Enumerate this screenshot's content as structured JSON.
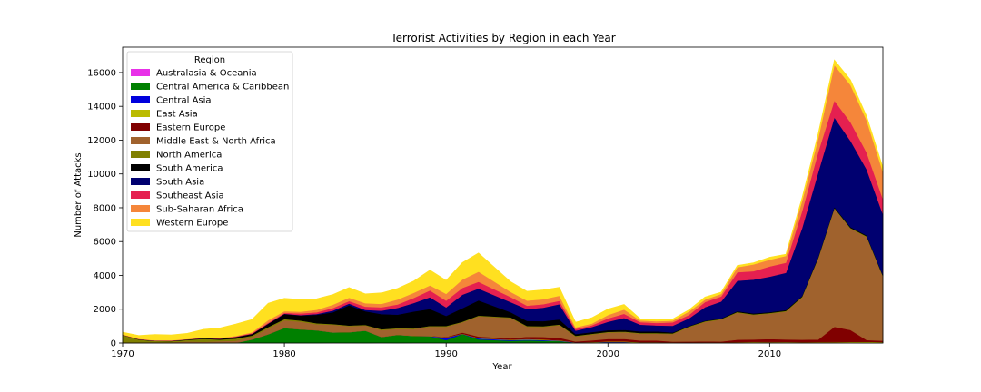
{
  "chart_data": {
    "type": "area",
    "stacked": true,
    "title": "Terrorist Activities by Region in each Year",
    "xlabel": "Year",
    "ylabel": "Number of Attacks",
    "xlim": [
      1970,
      2017
    ],
    "ylim": [
      0,
      17500
    ],
    "xticks": [
      1970,
      1980,
      1990,
      2000,
      2010
    ],
    "yticks": [
      0,
      2000,
      4000,
      6000,
      8000,
      10000,
      12000,
      14000,
      16000
    ],
    "legend": {
      "title": "Region",
      "position": "top-left"
    },
    "x": [
      1970,
      1971,
      1972,
      1973,
      1974,
      1975,
      1976,
      1977,
      1978,
      1979,
      1980,
      1981,
      1982,
      1983,
      1984,
      1985,
      1986,
      1987,
      1988,
      1989,
      1990,
      1991,
      1992,
      1994,
      1995,
      1996,
      1997,
      1998,
      1999,
      2000,
      2001,
      2002,
      2003,
      2004,
      2005,
      2006,
      2007,
      2008,
      2009,
      2010,
      2011,
      2012,
      2013,
      2014,
      2015,
      2016,
      2017
    ],
    "series": [
      {
        "name": "Australasia & Oceania",
        "color": "#e831e8",
        "values": [
          1,
          1,
          8,
          1,
          1,
          1,
          0,
          0,
          9,
          2,
          0,
          1,
          2,
          16,
          11,
          6,
          16,
          6,
          19,
          14,
          12,
          11,
          15,
          7,
          6,
          5,
          4,
          2,
          1,
          5,
          2,
          3,
          6,
          3,
          3,
          1,
          0,
          2,
          3,
          1,
          2,
          4,
          2,
          4,
          8,
          5,
          5
        ]
      },
      {
        "name": "Central America & Caribbean",
        "color": "#008000",
        "values": [
          7,
          5,
          3,
          6,
          11,
          4,
          13,
          10,
          201,
          517,
          891,
          808,
          754,
          611,
          631,
          728,
          346,
          480,
          402,
          394,
          159,
          520,
          200,
          128,
          161,
          130,
          110,
          16,
          12,
          39,
          41,
          22,
          15,
          11,
          5,
          15,
          13,
          10,
          23,
          18,
          21,
          10,
          10,
          10,
          10,
          7,
          8
        ]
      },
      {
        "name": "Central Asia",
        "color": "#0000dd",
        "values": [
          0,
          0,
          0,
          0,
          0,
          0,
          0,
          0,
          0,
          0,
          0,
          0,
          0,
          0,
          0,
          0,
          0,
          0,
          0,
          0,
          150,
          10,
          60,
          45,
          45,
          40,
          25,
          15,
          25,
          25,
          20,
          5,
          10,
          5,
          5,
          5,
          5,
          5,
          5,
          10,
          10,
          5,
          5,
          5,
          5,
          5,
          5
        ]
      },
      {
        "name": "East Asia",
        "color": "#bbbb00",
        "values": [
          2,
          1,
          2,
          3,
          3,
          4,
          4,
          5,
          5,
          5,
          5,
          5,
          5,
          5,
          5,
          5,
          5,
          5,
          10,
          10,
          10,
          10,
          20,
          20,
          30,
          30,
          20,
          10,
          20,
          20,
          30,
          20,
          20,
          15,
          15,
          20,
          20,
          30,
          30,
          30,
          30,
          30,
          40,
          40,
          50,
          60,
          40
        ]
      },
      {
        "name": "Eastern Europe",
        "color": "#800000",
        "values": [
          0,
          0,
          0,
          1,
          0,
          0,
          0,
          0,
          0,
          0,
          0,
          0,
          0,
          0,
          0,
          0,
          0,
          0,
          0,
          5,
          30,
          70,
          90,
          80,
          130,
          150,
          150,
          50,
          100,
          150,
          150,
          100,
          100,
          50,
          60,
          60,
          50,
          150,
          150,
          180,
          150,
          150,
          150,
          900,
          700,
          100,
          80
        ]
      },
      {
        "name": "Middle East & North Africa",
        "color": "#a0622d",
        "values": [
          20,
          30,
          40,
          30,
          80,
          60,
          90,
          120,
          140,
          350,
          450,
          450,
          350,
          450,
          350,
          300,
          400,
          350,
          400,
          550,
          600,
          600,
          1200,
          1200,
          600,
          600,
          750,
          300,
          350,
          380,
          400,
          400,
          400,
          450,
          850,
          1150,
          1300,
          1600,
          1450,
          1500,
          1650,
          2500,
          4800,
          7000,
          6000,
          6100,
          3800
        ]
      },
      {
        "name": "North America",
        "color": "#808000",
        "values": [
          450,
          170,
          70,
          70,
          90,
          180,
          100,
          130,
          90,
          70,
          70,
          70,
          60,
          40,
          40,
          40,
          50,
          40,
          40,
          40,
          50,
          40,
          40,
          40,
          40,
          40,
          40,
          40,
          40,
          40,
          40,
          40,
          40,
          40,
          40,
          40,
          40,
          40,
          40,
          40,
          40,
          40,
          40,
          40,
          40,
          40,
          40
        ]
      },
      {
        "name": "South America",
        "color": "#000000",
        "values": [
          10,
          15,
          10,
          20,
          30,
          40,
          50,
          100,
          100,
          200,
          300,
          300,
          500,
          700,
          1200,
          800,
          900,
          800,
          1000,
          1000,
          600,
          800,
          900,
          300,
          300,
          300,
          300,
          100,
          100,
          100,
          100,
          100,
          100,
          50,
          30,
          30,
          30,
          50,
          50,
          50,
          50,
          50,
          50,
          50,
          50,
          50,
          50
        ]
      },
      {
        "name": "South Asia",
        "color": "#000070",
        "values": [
          1,
          1,
          1,
          1,
          1,
          1,
          1,
          1,
          1,
          10,
          20,
          20,
          50,
          100,
          100,
          80,
          200,
          400,
          500,
          700,
          500,
          800,
          700,
          600,
          700,
          800,
          900,
          200,
          300,
          500,
          700,
          400,
          350,
          400,
          450,
          800,
          1000,
          1800,
          2000,
          2100,
          2200,
          4000,
          5000,
          5300,
          5100,
          3900,
          3600
        ]
      },
      {
        "name": "Southeast Asia",
        "color": "#e52050",
        "values": [
          10,
          20,
          20,
          20,
          10,
          20,
          20,
          20,
          40,
          50,
          50,
          100,
          100,
          150,
          150,
          200,
          200,
          200,
          300,
          400,
          400,
          400,
          400,
          300,
          200,
          200,
          200,
          100,
          100,
          200,
          250,
          150,
          150,
          200,
          200,
          300,
          300,
          500,
          500,
          600,
          600,
          1000,
          1200,
          1000,
          1100,
          1000,
          900
        ]
      },
      {
        "name": "Sub-Saharan Africa",
        "color": "#f5863a",
        "values": [
          10,
          5,
          5,
          10,
          10,
          20,
          30,
          40,
          50,
          150,
          100,
          100,
          150,
          200,
          200,
          200,
          200,
          300,
          300,
          300,
          400,
          500,
          600,
          300,
          300,
          300,
          300,
          100,
          100,
          200,
          250,
          100,
          100,
          100,
          200,
          150,
          150,
          300,
          400,
          400,
          400,
          600,
          800,
          2100,
          2200,
          1900,
          1600
        ]
      },
      {
        "name": "Western Europe",
        "color": "#ffe020",
        "values": [
          130,
          200,
          350,
          320,
          340,
          480,
          580,
          700,
          760,
          1000,
          760,
          730,
          650,
          600,
          600,
          550,
          650,
          650,
          700,
          900,
          800,
          1000,
          1100,
          600,
          550,
          550,
          500,
          300,
          350,
          350,
          300,
          100,
          100,
          100,
          100,
          150,
          100,
          100,
          100,
          150,
          100,
          200,
          300,
          300,
          300,
          250,
          270
        ]
      }
    ]
  }
}
